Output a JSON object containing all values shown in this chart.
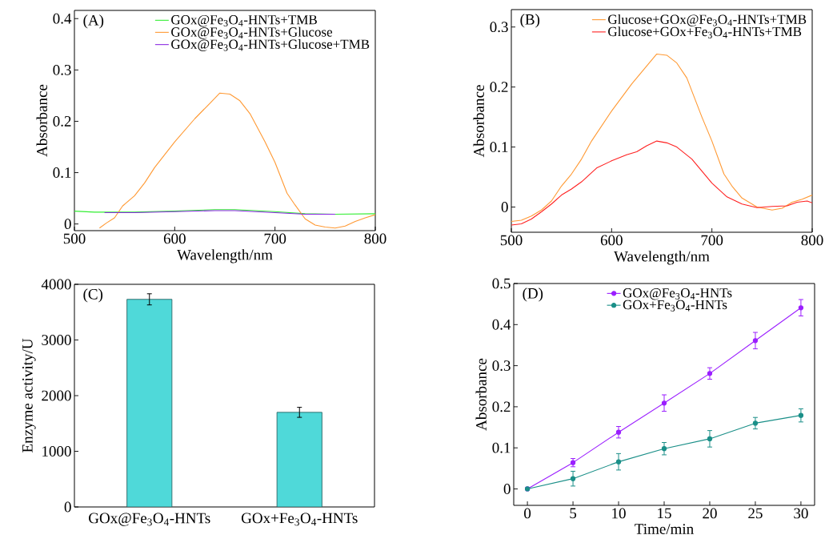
{
  "chart_data": [
    {
      "type": "line",
      "xlabel": "Wavelength/nm",
      "ylabel": "Absorbance",
      "xlim": [
        500,
        800
      ],
      "ylim": [
        -0.013,
        0.416
      ],
      "xticks": [
        500,
        600,
        700,
        800
      ],
      "yticks": [
        0,
        0.1,
        0.2,
        0.3,
        0.4
      ],
      "legend": "top right",
      "marker": "none",
      "line_style": "solid",
      "annotations": [
        "(A)"
      ],
      "series": [
        {
          "name": "GOx@Fe$_{3}$O$_{4}$-HNTs+TMB",
          "color": "#33ee33",
          "x": [
            500,
            520,
            540,
            560,
            600,
            640,
            660,
            700,
            730,
            760,
            800
          ],
          "values": [
            0.025,
            0.023,
            0.023,
            0.023,
            0.025,
            0.028,
            0.028,
            0.024,
            0.02,
            0.019,
            0.02
          ]
        },
        {
          "name": "GOx@Fe$_{3}$O$_{4}$-HNTs+Glucose",
          "color": "#ff9933",
          "x": [
            525,
            532,
            540,
            548,
            560,
            570,
            580,
            600,
            620,
            635,
            645,
            655,
            665,
            675,
            690,
            700,
            712,
            720,
            730,
            740,
            750,
            760,
            770,
            780,
            790,
            800
          ],
          "values": [
            -0.008,
            0.002,
            0.012,
            0.035,
            0.055,
            0.08,
            0.11,
            0.16,
            0.205,
            0.235,
            0.255,
            0.253,
            0.24,
            0.215,
            0.16,
            0.12,
            0.06,
            0.037,
            0.01,
            -0.002,
            -0.006,
            -0.008,
            -0.004,
            0.005,
            0.012,
            0.018
          ]
        },
        {
          "name": "GOx@Fe$_{3}$O$_{4}$-HNTs+Glucose+TMB",
          "color": "#8a2be2",
          "x": [
            530,
            540,
            560,
            600,
            640,
            660,
            700,
            730,
            760
          ],
          "values": [
            0.022,
            0.022,
            0.022,
            0.024,
            0.026,
            0.026,
            0.022,
            0.019,
            0.019
          ]
        }
      ]
    },
    {
      "type": "line",
      "xlabel": "Wavelength/nm",
      "ylabel": "Absorbance",
      "xlim": [
        500,
        800
      ],
      "ylim": [
        -0.042,
        0.329
      ],
      "xticks": [
        500,
        600,
        700,
        800
      ],
      "yticks": [
        0,
        0.1,
        0.2,
        0.3
      ],
      "legend": "top right",
      "marker": "none",
      "line_style": "solid",
      "annotations": [
        "(B)"
      ],
      "series": [
        {
          "name": "Glucose+GOx@Fe$_{3}$O$_{4}$-HNTs+TMB",
          "color": "#ff9933",
          "x": [
            500,
            510,
            520,
            530,
            540,
            550,
            560,
            570,
            580,
            600,
            620,
            630,
            645,
            655,
            665,
            675,
            690,
            700,
            712,
            720,
            730,
            745,
            760,
            770,
            780,
            790,
            800
          ],
          "values": [
            -0.024,
            -0.022,
            -0.015,
            -0.005,
            0.01,
            0.035,
            0.055,
            0.08,
            0.11,
            0.16,
            0.205,
            0.225,
            0.255,
            0.253,
            0.24,
            0.215,
            0.15,
            0.11,
            0.055,
            0.035,
            0.015,
            0.0,
            -0.005,
            -0.002,
            0.008,
            0.013,
            0.02
          ]
        },
        {
          "name": "Glucose+GOx+Fe$_{3}$O$_{4}$-HNTs+TMB",
          "color": "#ff2020",
          "x": [
            500,
            510,
            520,
            530,
            540,
            550,
            560,
            570,
            585,
            600,
            615,
            625,
            635,
            645,
            655,
            665,
            680,
            690,
            700,
            715,
            730,
            745,
            760,
            775,
            785,
            795,
            800
          ],
          "values": [
            -0.03,
            -0.028,
            -0.02,
            -0.008,
            0.005,
            0.02,
            0.03,
            0.042,
            0.065,
            0.077,
            0.087,
            0.092,
            0.102,
            0.11,
            0.107,
            0.1,
            0.08,
            0.06,
            0.04,
            0.017,
            0.005,
            -0.001,
            0.001,
            0.002,
            0.008,
            0.01,
            0.007
          ]
        }
      ]
    },
    {
      "type": "bar",
      "ylabel": "Enzyme activity/U",
      "ylim": [
        0,
        4000
      ],
      "yticks": [
        0,
        1000,
        2000,
        3000,
        4000
      ],
      "annotations": [
        "(C)"
      ],
      "categories": [
        "GOx@Fe$_{3}$O$_{4}$-HNTs",
        "GOx+Fe$_{3}$O$_{4}$-HNTs"
      ],
      "values": [
        3730,
        1700
      ],
      "errors": [
        100,
        90
      ],
      "color": "#4fd9d9"
    },
    {
      "type": "line",
      "xlabel": "Time/min",
      "ylabel": "Absorbance",
      "xlim": [
        -1.5,
        31.5
      ],
      "ylim": [
        -0.04,
        0.5
      ],
      "xticks": [
        0,
        5,
        10,
        15,
        20,
        25,
        30
      ],
      "yticks": [
        0,
        0.1,
        0.2,
        0.3,
        0.4,
        0.5
      ],
      "legend": "top",
      "marker": "circle",
      "line_style": "solid",
      "annotations": [
        "(D)"
      ],
      "series": [
        {
          "name": "GOx@Fe$_{3}$O$_{4}$-HNTs",
          "color": "#9b1fff",
          "x": [
            0,
            5,
            10,
            15,
            20,
            25,
            30
          ],
          "values": [
            0,
            0.064,
            0.138,
            0.209,
            0.281,
            0.361,
            0.441
          ],
          "errors": [
            null,
            0.01,
            0.014,
            0.02,
            0.014,
            0.02,
            0.02
          ]
        },
        {
          "name": "GOx+Fe$_{3}$O$_{4}$-HNTs",
          "color": "#1a8f88",
          "x": [
            0,
            5,
            10,
            15,
            20,
            25,
            30
          ],
          "values": [
            0,
            0.025,
            0.066,
            0.098,
            0.122,
            0.16,
            0.179
          ],
          "errors": [
            null,
            0.018,
            0.02,
            0.015,
            0.02,
            0.014,
            0.016
          ]
        }
      ]
    }
  ]
}
